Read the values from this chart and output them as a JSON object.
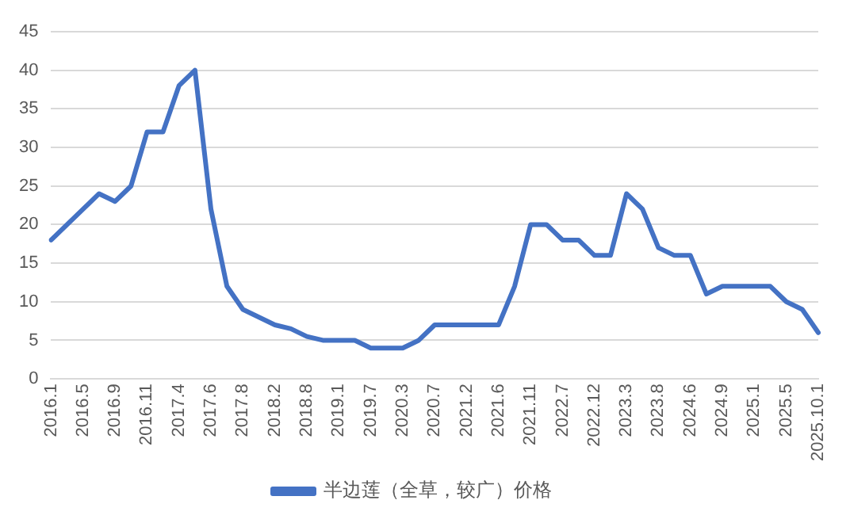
{
  "chart_data": {
    "type": "line",
    "categories": [
      "2016.1",
      null,
      "2016.5",
      null,
      "2016.9",
      null,
      "2016.11",
      null,
      "2017.4",
      null,
      "2017.6",
      null,
      "2017.8",
      null,
      "2018.2",
      null,
      "2018.8",
      null,
      "2019.1",
      null,
      "2019.7",
      null,
      "2020.3",
      null,
      "2020.7",
      null,
      "2021.2",
      null,
      "2021.6",
      null,
      "2021.11",
      null,
      "2022.7",
      null,
      "2022.12",
      null,
      "2023.3",
      null,
      "2023.8",
      null,
      "2024.6",
      null,
      "2024.9",
      null,
      "2025.1",
      null,
      "2025.5",
      null,
      "2025.10.1"
    ],
    "series": [
      {
        "name": "半边莲（全草，较广）价格",
        "color": "#4472c4",
        "values": [
          18,
          20,
          22,
          24,
          23,
          25,
          32,
          32,
          38,
          40,
          22,
          12,
          9,
          8,
          7,
          6.5,
          5.5,
          5,
          5,
          5,
          4,
          4,
          4,
          5,
          7,
          7,
          7,
          7,
          7,
          12,
          20,
          20,
          18,
          18,
          16,
          16,
          24,
          22,
          17,
          16,
          16,
          11,
          12,
          12,
          12,
          12,
          10,
          9,
          6
        ]
      }
    ],
    "ylim": [
      0,
      45
    ],
    "yticks": [
      0,
      5,
      10,
      15,
      20,
      25,
      30,
      35,
      40,
      45
    ],
    "grid": "y",
    "legend": "bottom",
    "marker": "none",
    "line_style": "solid"
  }
}
